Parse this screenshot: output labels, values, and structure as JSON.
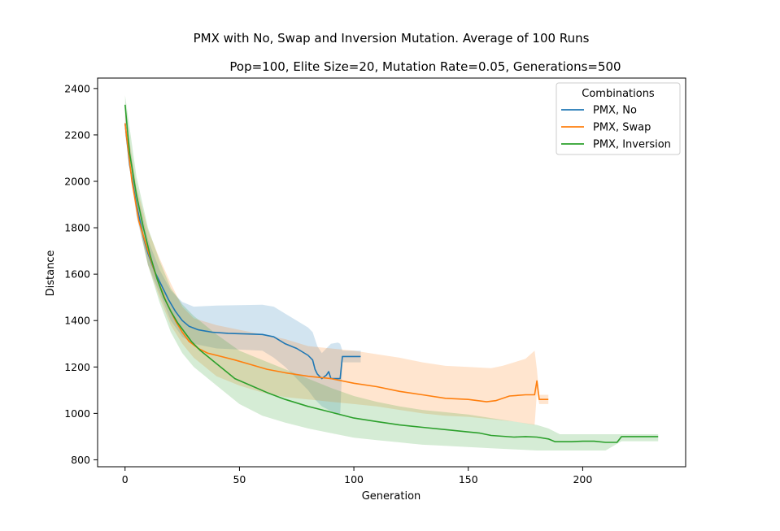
{
  "chart_data": {
    "type": "line",
    "title": "PMX with No, Swap and Inversion Mutation. Average of 100 Runs",
    "subtitle": "Pop=100, Elite Size=20, Mutation Rate=0.05, Generations=500",
    "xlabel": "Generation",
    "ylabel": "Distance",
    "xlim": [
      -12,
      245
    ],
    "ylim": [
      770,
      2445
    ],
    "xticks": [
      0,
      50,
      100,
      150,
      200
    ],
    "yticks": [
      800,
      1000,
      1200,
      1400,
      1600,
      1800,
      2000,
      2200,
      2400
    ],
    "grid": false,
    "legend": {
      "title": "Combinations",
      "placement": "top-right"
    },
    "series": [
      {
        "name": "PMX, No",
        "color": "#1f77b4",
        "points": [
          [
            0,
            2250
          ],
          [
            2,
            2070
          ],
          [
            5,
            1900
          ],
          [
            8,
            1760
          ],
          [
            10,
            1690
          ],
          [
            13,
            1610
          ],
          [
            16,
            1550
          ],
          [
            19,
            1490
          ],
          [
            22,
            1440
          ],
          [
            25,
            1400
          ],
          [
            28,
            1375
          ],
          [
            32,
            1360
          ],
          [
            38,
            1350
          ],
          [
            45,
            1345
          ],
          [
            55,
            1342
          ],
          [
            60,
            1340
          ],
          [
            65,
            1330
          ],
          [
            70,
            1300
          ],
          [
            75,
            1280
          ],
          [
            80,
            1250
          ],
          [
            82,
            1230
          ],
          [
            83,
            1190
          ],
          [
            84,
            1170
          ],
          [
            86,
            1150
          ],
          [
            88,
            1165
          ],
          [
            89,
            1180
          ],
          [
            90,
            1150
          ],
          [
            94,
            1150
          ],
          [
            95,
            1245
          ],
          [
            103,
            1245
          ]
        ],
        "band_upper": [
          [
            0,
            2290
          ],
          [
            5,
            1960
          ],
          [
            10,
            1750
          ],
          [
            15,
            1620
          ],
          [
            20,
            1530
          ],
          [
            25,
            1480
          ],
          [
            30,
            1460
          ],
          [
            40,
            1465
          ],
          [
            60,
            1468
          ],
          [
            65,
            1460
          ],
          [
            70,
            1430
          ],
          [
            75,
            1400
          ],
          [
            80,
            1370
          ],
          [
            82,
            1350
          ],
          [
            84,
            1290
          ],
          [
            86,
            1260
          ],
          [
            88,
            1280
          ],
          [
            90,
            1300
          ],
          [
            93,
            1305
          ],
          [
            94,
            1300
          ],
          [
            95,
            1270
          ],
          [
            103,
            1270
          ]
        ],
        "band_lower": [
          [
            0,
            2210
          ],
          [
            5,
            1850
          ],
          [
            10,
            1640
          ],
          [
            15,
            1520
          ],
          [
            20,
            1400
          ],
          [
            25,
            1330
          ],
          [
            30,
            1300
          ],
          [
            40,
            1280
          ],
          [
            60,
            1270
          ],
          [
            65,
            1240
          ],
          [
            70,
            1200
          ],
          [
            75,
            1150
          ],
          [
            80,
            1100
          ],
          [
            83,
            1060
          ],
          [
            86,
            1030
          ],
          [
            90,
            1010
          ],
          [
            93,
            1000
          ],
          [
            94,
            990
          ],
          [
            95,
            1220
          ],
          [
            103,
            1220
          ]
        ]
      },
      {
        "name": "PMX, Swap",
        "color": "#ff7f0e",
        "points": [
          [
            0,
            2250
          ],
          [
            3,
            2000
          ],
          [
            6,
            1830
          ],
          [
            10,
            1700
          ],
          [
            14,
            1580
          ],
          [
            18,
            1480
          ],
          [
            22,
            1400
          ],
          [
            25,
            1350
          ],
          [
            28,
            1310
          ],
          [
            32,
            1280
          ],
          [
            36,
            1260
          ],
          [
            42,
            1245
          ],
          [
            48,
            1230
          ],
          [
            55,
            1210
          ],
          [
            62,
            1190
          ],
          [
            70,
            1175
          ],
          [
            80,
            1160
          ],
          [
            90,
            1150
          ],
          [
            100,
            1130
          ],
          [
            110,
            1115
          ],
          [
            120,
            1095
          ],
          [
            130,
            1080
          ],
          [
            140,
            1065
          ],
          [
            150,
            1060
          ],
          [
            158,
            1050
          ],
          [
            162,
            1055
          ],
          [
            168,
            1075
          ],
          [
            175,
            1080
          ],
          [
            179,
            1080
          ],
          [
            180,
            1140
          ],
          [
            181,
            1060
          ],
          [
            185,
            1060
          ]
        ],
        "band_upper": [
          [
            0,
            2300
          ],
          [
            5,
            1980
          ],
          [
            10,
            1790
          ],
          [
            15,
            1670
          ],
          [
            20,
            1560
          ],
          [
            25,
            1460
          ],
          [
            30,
            1410
          ],
          [
            40,
            1380
          ],
          [
            50,
            1360
          ],
          [
            60,
            1340
          ],
          [
            70,
            1320
          ],
          [
            80,
            1290
          ],
          [
            90,
            1280
          ],
          [
            100,
            1270
          ],
          [
            110,
            1255
          ],
          [
            120,
            1240
          ],
          [
            130,
            1220
          ],
          [
            140,
            1205
          ],
          [
            150,
            1200
          ],
          [
            160,
            1195
          ],
          [
            165,
            1205
          ],
          [
            170,
            1220
          ],
          [
            175,
            1235
          ],
          [
            179,
            1270
          ],
          [
            180,
            1190
          ],
          [
            181,
            1080
          ],
          [
            185,
            1080
          ]
        ],
        "band_lower": [
          [
            0,
            2200
          ],
          [
            5,
            1860
          ],
          [
            10,
            1640
          ],
          [
            15,
            1500
          ],
          [
            20,
            1380
          ],
          [
            25,
            1300
          ],
          [
            30,
            1240
          ],
          [
            40,
            1160
          ],
          [
            50,
            1120
          ],
          [
            60,
            1090
          ],
          [
            70,
            1070
          ],
          [
            80,
            1060
          ],
          [
            90,
            1050
          ],
          [
            100,
            1040
          ],
          [
            110,
            1030
          ],
          [
            120,
            1015
          ],
          [
            130,
            1000
          ],
          [
            140,
            990
          ],
          [
            150,
            985
          ],
          [
            160,
            975
          ],
          [
            170,
            965
          ],
          [
            179,
            950
          ],
          [
            180,
            1090
          ],
          [
            181,
            1040
          ],
          [
            185,
            1040
          ]
        ]
      },
      {
        "name": "PMX, Inversion",
        "color": "#2ca02c",
        "points": [
          [
            0,
            2330
          ],
          [
            2,
            2120
          ],
          [
            5,
            1940
          ],
          [
            8,
            1800
          ],
          [
            11,
            1680
          ],
          [
            14,
            1580
          ],
          [
            17,
            1500
          ],
          [
            20,
            1440
          ],
          [
            23,
            1390
          ],
          [
            26,
            1350
          ],
          [
            29,
            1310
          ],
          [
            33,
            1270
          ],
          [
            38,
            1230
          ],
          [
            43,
            1190
          ],
          [
            48,
            1150
          ],
          [
            55,
            1120
          ],
          [
            62,
            1090
          ],
          [
            70,
            1060
          ],
          [
            80,
            1030
          ],
          [
            90,
            1005
          ],
          [
            100,
            980
          ],
          [
            110,
            965
          ],
          [
            120,
            950
          ],
          [
            130,
            940
          ],
          [
            140,
            930
          ],
          [
            150,
            920
          ],
          [
            155,
            915
          ],
          [
            160,
            905
          ],
          [
            170,
            898
          ],
          [
            175,
            900
          ],
          [
            180,
            898
          ],
          [
            185,
            890
          ],
          [
            188,
            878
          ],
          [
            195,
            878
          ],
          [
            200,
            880
          ],
          [
            205,
            880
          ],
          [
            210,
            875
          ],
          [
            215,
            875
          ],
          [
            217,
            900
          ],
          [
            233,
            900
          ]
        ],
        "band_upper": [
          [
            0,
            2370
          ],
          [
            5,
            2020
          ],
          [
            10,
            1800
          ],
          [
            15,
            1660
          ],
          [
            20,
            1540
          ],
          [
            25,
            1470
          ],
          [
            30,
            1420
          ],
          [
            40,
            1340
          ],
          [
            50,
            1270
          ],
          [
            60,
            1230
          ],
          [
            70,
            1190
          ],
          [
            80,
            1150
          ],
          [
            90,
            1110
          ],
          [
            100,
            1075
          ],
          [
            110,
            1050
          ],
          [
            120,
            1030
          ],
          [
            130,
            1015
          ],
          [
            140,
            1005
          ],
          [
            150,
            995
          ],
          [
            160,
            980
          ],
          [
            170,
            965
          ],
          [
            180,
            950
          ],
          [
            185,
            935
          ],
          [
            190,
            910
          ],
          [
            200,
            910
          ],
          [
            210,
            910
          ],
          [
            217,
            910
          ],
          [
            233,
            910
          ]
        ],
        "band_lower": [
          [
            0,
            2290
          ],
          [
            5,
            1870
          ],
          [
            10,
            1640
          ],
          [
            15,
            1480
          ],
          [
            20,
            1350
          ],
          [
            25,
            1260
          ],
          [
            30,
            1200
          ],
          [
            40,
            1120
          ],
          [
            50,
            1040
          ],
          [
            60,
            990
          ],
          [
            70,
            960
          ],
          [
            80,
            935
          ],
          [
            90,
            915
          ],
          [
            100,
            895
          ],
          [
            110,
            885
          ],
          [
            120,
            875
          ],
          [
            130,
            865
          ],
          [
            140,
            860
          ],
          [
            150,
            855
          ],
          [
            160,
            850
          ],
          [
            170,
            845
          ],
          [
            180,
            840
          ],
          [
            190,
            840
          ],
          [
            200,
            840
          ],
          [
            210,
            840
          ],
          [
            217,
            880
          ],
          [
            233,
            880
          ]
        ]
      }
    ]
  }
}
